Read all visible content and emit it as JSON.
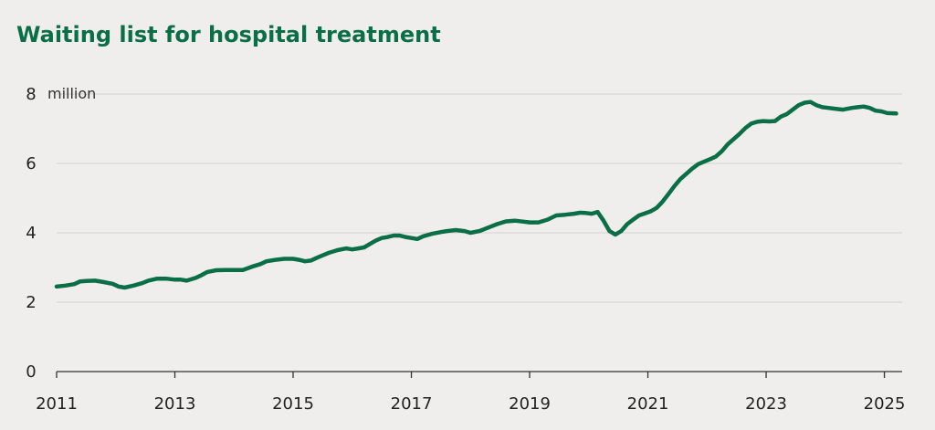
{
  "chart_data": {
    "type": "line",
    "title": "Waiting list for hospital treatment",
    "unit_label": "million",
    "xlabel": "",
    "ylabel": "",
    "xlim": [
      2011,
      2025.3
    ],
    "ylim": [
      0,
      8
    ],
    "x_ticks": [
      2011,
      2013,
      2015,
      2017,
      2019,
      2021,
      2023,
      2025
    ],
    "y_ticks": [
      0,
      2,
      4,
      6,
      8
    ],
    "grid": true,
    "line_color": "#0a6e46",
    "series": [
      {
        "points": [
          [
            2011.0,
            2.45
          ],
          [
            2011.15,
            2.48
          ],
          [
            2011.3,
            2.52
          ],
          [
            2011.4,
            2.6
          ],
          [
            2011.5,
            2.61
          ],
          [
            2011.65,
            2.62
          ],
          [
            2011.8,
            2.58
          ],
          [
            2011.95,
            2.53
          ],
          [
            2012.05,
            2.45
          ],
          [
            2012.15,
            2.42
          ],
          [
            2012.3,
            2.48
          ],
          [
            2012.45,
            2.55
          ],
          [
            2012.55,
            2.62
          ],
          [
            2012.7,
            2.68
          ],
          [
            2012.85,
            2.68
          ],
          [
            2013.0,
            2.65
          ],
          [
            2013.1,
            2.65
          ],
          [
            2013.2,
            2.62
          ],
          [
            2013.35,
            2.7
          ],
          [
            2013.45,
            2.78
          ],
          [
            2013.55,
            2.87
          ],
          [
            2013.7,
            2.92
          ],
          [
            2013.85,
            2.93
          ],
          [
            2014.0,
            2.93
          ],
          [
            2014.15,
            2.93
          ],
          [
            2014.3,
            3.02
          ],
          [
            2014.45,
            3.1
          ],
          [
            2014.55,
            3.18
          ],
          [
            2014.7,
            3.22
          ],
          [
            2014.85,
            3.25
          ],
          [
            2015.0,
            3.25
          ],
          [
            2015.1,
            3.22
          ],
          [
            2015.2,
            3.18
          ],
          [
            2015.3,
            3.2
          ],
          [
            2015.4,
            3.28
          ],
          [
            2015.5,
            3.35
          ],
          [
            2015.6,
            3.42
          ],
          [
            2015.75,
            3.5
          ],
          [
            2015.9,
            3.55
          ],
          [
            2016.0,
            3.52
          ],
          [
            2016.1,
            3.55
          ],
          [
            2016.2,
            3.58
          ],
          [
            2016.3,
            3.68
          ],
          [
            2016.4,
            3.78
          ],
          [
            2016.5,
            3.85
          ],
          [
            2016.6,
            3.88
          ],
          [
            2016.7,
            3.92
          ],
          [
            2016.8,
            3.92
          ],
          [
            2016.9,
            3.88
          ],
          [
            2017.0,
            3.85
          ],
          [
            2017.1,
            3.82
          ],
          [
            2017.2,
            3.9
          ],
          [
            2017.35,
            3.97
          ],
          [
            2017.5,
            4.02
          ],
          [
            2017.6,
            4.05
          ],
          [
            2017.75,
            4.08
          ],
          [
            2017.9,
            4.05
          ],
          [
            2018.0,
            4.0
          ],
          [
            2018.15,
            4.05
          ],
          [
            2018.3,
            4.15
          ],
          [
            2018.45,
            4.25
          ],
          [
            2018.6,
            4.33
          ],
          [
            2018.75,
            4.35
          ],
          [
            2018.9,
            4.32
          ],
          [
            2019.0,
            4.3
          ],
          [
            2019.15,
            4.3
          ],
          [
            2019.3,
            4.38
          ],
          [
            2019.45,
            4.5
          ],
          [
            2019.6,
            4.52
          ],
          [
            2019.75,
            4.55
          ],
          [
            2019.85,
            4.58
          ],
          [
            2019.95,
            4.57
          ],
          [
            2020.05,
            4.55
          ],
          [
            2020.15,
            4.6
          ],
          [
            2020.25,
            4.35
          ],
          [
            2020.35,
            4.05
          ],
          [
            2020.45,
            3.95
          ],
          [
            2020.55,
            4.05
          ],
          [
            2020.65,
            4.25
          ],
          [
            2020.75,
            4.38
          ],
          [
            2020.85,
            4.5
          ],
          [
            2020.95,
            4.56
          ],
          [
            2021.05,
            4.62
          ],
          [
            2021.15,
            4.72
          ],
          [
            2021.25,
            4.9
          ],
          [
            2021.35,
            5.12
          ],
          [
            2021.45,
            5.35
          ],
          [
            2021.55,
            5.55
          ],
          [
            2021.65,
            5.7
          ],
          [
            2021.75,
            5.85
          ],
          [
            2021.85,
            5.98
          ],
          [
            2021.95,
            6.05
          ],
          [
            2022.05,
            6.12
          ],
          [
            2022.15,
            6.2
          ],
          [
            2022.25,
            6.35
          ],
          [
            2022.35,
            6.55
          ],
          [
            2022.45,
            6.7
          ],
          [
            2022.55,
            6.85
          ],
          [
            2022.65,
            7.02
          ],
          [
            2022.75,
            7.15
          ],
          [
            2022.85,
            7.2
          ],
          [
            2022.95,
            7.22
          ],
          [
            2023.05,
            7.21
          ],
          [
            2023.15,
            7.22
          ],
          [
            2023.25,
            7.35
          ],
          [
            2023.35,
            7.42
          ],
          [
            2023.45,
            7.55
          ],
          [
            2023.55,
            7.68
          ],
          [
            2023.65,
            7.75
          ],
          [
            2023.75,
            7.77
          ],
          [
            2023.85,
            7.68
          ],
          [
            2023.95,
            7.62
          ],
          [
            2024.05,
            7.6
          ],
          [
            2024.15,
            7.58
          ],
          [
            2024.3,
            7.55
          ],
          [
            2024.45,
            7.6
          ],
          [
            2024.55,
            7.62
          ],
          [
            2024.65,
            7.64
          ],
          [
            2024.75,
            7.6
          ],
          [
            2024.85,
            7.52
          ],
          [
            2024.95,
            7.5
          ],
          [
            2025.05,
            7.45
          ],
          [
            2025.2,
            7.44
          ]
        ]
      }
    ]
  }
}
